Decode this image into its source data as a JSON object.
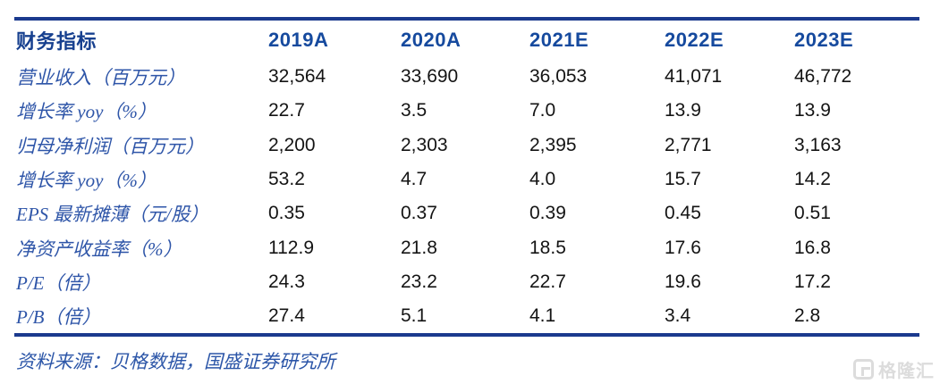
{
  "table": {
    "header": [
      "财务指标",
      "2019A",
      "2020A",
      "2021E",
      "2022E",
      "2023E"
    ],
    "rows": [
      {
        "label": "营业收入（百万元）",
        "values": [
          "32,564",
          "33,690",
          "36,053",
          "41,071",
          "46,772"
        ]
      },
      {
        "label": "增长率 yoy（%）",
        "values": [
          "22.7",
          "3.5",
          "7.0",
          "13.9",
          "13.9"
        ]
      },
      {
        "label": "归母净利润（百万元）",
        "values": [
          "2,200",
          "2,303",
          "2,395",
          "2,771",
          "3,163"
        ]
      },
      {
        "label": "增长率 yoy（%）",
        "values": [
          "53.2",
          "4.7",
          "4.0",
          "15.7",
          "14.2"
        ]
      },
      {
        "label": "EPS 最新摊薄（元/股）",
        "values": [
          "0.35",
          "0.37",
          "0.39",
          "0.45",
          "0.51"
        ]
      },
      {
        "label": "净资产收益率（%）",
        "values": [
          "112.9",
          "21.8",
          "18.5",
          "17.6",
          "16.8"
        ]
      },
      {
        "label": "P/E（倍）",
        "values": [
          "24.3",
          "23.2",
          "22.7",
          "19.6",
          "17.2"
        ]
      },
      {
        "label": "P/B（倍）",
        "values": [
          "27.4",
          "5.1",
          "4.1",
          "3.4",
          "2.8"
        ]
      }
    ]
  },
  "footer": {
    "source": "资料来源：贝格数据，国盛证券研究所"
  },
  "watermark": {
    "brand": "格隆汇",
    "icon": "gelonghui-logo"
  },
  "colors": {
    "rule": "#1b3a8e",
    "year_header_text": "#164a9e",
    "metric_label_text": "#2e55a8",
    "value_text": "#141414",
    "source_text": "#2c56a8",
    "watermark": "#dcdcdc"
  }
}
